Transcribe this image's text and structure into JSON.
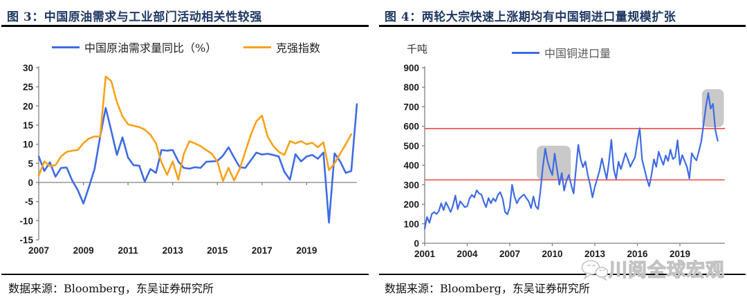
{
  "watermark": {
    "text": "川阅全球宏观",
    "icon": "wechat-icon",
    "color": "#c3c3c3"
  },
  "palette": {
    "blue": "#3E6BE4",
    "orange": "#F7A11A",
    "red": "#F4504E",
    "highlight_gray": "#C9C9C9",
    "title_navy": "#1F3864",
    "axis_gray": "#7f7f7f"
  },
  "chart_data": [
    {
      "id": "fig3",
      "type": "line",
      "title": "图 3：中国原油需求与工业部门活动相关性较强",
      "source": "数据来源：Bloomberg，东吴证券研究所",
      "legend_position": "top",
      "grid": false,
      "x_start": 2007.0,
      "points_per_year": 4,
      "xlim": [
        2007,
        2021.25
      ],
      "ylim": [
        -15,
        30
      ],
      "yticks": [
        -15,
        -10,
        -5,
        0,
        5,
        10,
        15,
        20,
        25,
        30
      ],
      "xticks": {
        "values": [
          2007,
          2009,
          2011,
          2013,
          2015,
          2017,
          2019
        ],
        "labels": [
          "2007",
          "2009",
          "2011",
          "2013",
          "2015",
          "2017",
          "2019"
        ]
      },
      "line_width": 2.6,
      "series": [
        {
          "name": "中国原油需求量同比（%）",
          "color": "#3E6BE4",
          "values": [
            6.8,
            3.0,
            5.3,
            1.5,
            3.8,
            3.9,
            0.5,
            -2.0,
            -5.5,
            -1.2,
            3.5,
            12.0,
            19.5,
            13.5,
            7.2,
            11.8,
            6.5,
            4.5,
            4.4,
            0.2,
            3.5,
            2.5,
            8.5,
            8.3,
            8.5,
            5.5,
            3.8,
            3.6,
            4.0,
            3.8,
            5.4,
            5.5,
            5.6,
            7.0,
            9.2,
            6.5,
            4.0,
            3.8,
            5.8,
            7.8,
            7.3,
            7.5,
            7.2,
            6.8,
            2.8,
            0.7,
            7.4,
            5.5,
            6.8,
            7.2,
            6.2,
            7.8,
            -10.5,
            7.6,
            5.5,
            2.5,
            3.0,
            20.5
          ]
        },
        {
          "name": "克强指数",
          "color": "#F7A11A",
          "values": [
            1.8,
            5.5,
            4.3,
            4.5,
            6.8,
            8.0,
            8.3,
            8.5,
            10.3,
            11.5,
            12.0,
            12.0,
            27.7,
            26.5,
            21.0,
            17.3,
            15.2,
            14.8,
            14.5,
            13.8,
            12.5,
            10.2,
            5.2,
            2.0,
            5.5,
            0.7,
            7.5,
            10.8,
            10.2,
            9.5,
            8.5,
            7.5,
            5.5,
            0.4,
            3.8,
            0.5,
            3.5,
            8.0,
            12.5,
            16.0,
            17.5,
            12.0,
            9.6,
            8.0,
            7.2,
            10.8,
            10.2,
            10.8,
            10.0,
            10.4,
            9.2,
            10.5,
            3.2,
            5.0,
            7.5,
            10.0,
            12.6,
            null
          ]
        }
      ]
    },
    {
      "id": "fig4",
      "type": "line",
      "title": "图 4：两轮大宗快速上涨期均有中国铜进口量规模扩张",
      "source": "数据来源：Bloomberg，东吴证券研究所",
      "y_unit_label": "千吨",
      "legend_position": "top",
      "grid": false,
      "x_start": 2001.0,
      "points_per_year": 6,
      "xlim": [
        2001,
        2022.17
      ],
      "ylim": [
        0,
        900
      ],
      "yticks": [
        0,
        100,
        200,
        300,
        400,
        500,
        600,
        700,
        800,
        900
      ],
      "xticks": {
        "values": [
          2001,
          2004,
          2007,
          2010,
          2013,
          2016,
          2019
        ],
        "labels": [
          "2001",
          "2004",
          "2007",
          "2010",
          "2013",
          "2016",
          "2019"
        ]
      },
      "line_width": 2.2,
      "ref_lines": [
        {
          "y": 325,
          "color": "#F4504E"
        },
        {
          "y": 588,
          "color": "#F4504E"
        }
      ],
      "highlight_boxes": [
        {
          "x1": 2008.9,
          "x2": 2011.3,
          "y1": 325,
          "y2": 500,
          "color": "#C9C9C9"
        },
        {
          "x1": 2020.55,
          "x2": 2022.1,
          "y1": 595,
          "y2": 790,
          "color": "#C9C9C9"
        }
      ],
      "series": [
        {
          "name": "中国铜进口量",
          "color": "#3E6BE4",
          "values": [
            75,
            135,
            105,
            150,
            160,
            150,
            165,
            205,
            170,
            210,
            185,
            160,
            195,
            245,
            175,
            215,
            200,
            185,
            190,
            230,
            248,
            235,
            272,
            255,
            250,
            213,
            185,
            232,
            205,
            230,
            215,
            248,
            262,
            228,
            160,
            148,
            185,
            300,
            240,
            205,
            228,
            240,
            250,
            232,
            215,
            180,
            240,
            190,
            175,
            270,
            390,
            485,
            420,
            380,
            350,
            460,
            380,
            300,
            360,
            270,
            320,
            350,
            300,
            255,
            380,
            505,
            430,
            390,
            420,
            350,
            300,
            235,
            290,
            330,
            372,
            435,
            380,
            330,
            420,
            530,
            380,
            330,
            418,
            380,
            420,
            462,
            430,
            392,
            418,
            440,
            520,
            590,
            430,
            380,
            330,
            292,
            352,
            430,
            392,
            470,
            432,
            402,
            450,
            422,
            480,
            432,
            442,
            528,
            402,
            452,
            422,
            390,
            332,
            462,
            440,
            425,
            470,
            520,
            610,
            700,
            770,
            690,
            715,
            580,
            525
          ]
        }
      ]
    }
  ]
}
